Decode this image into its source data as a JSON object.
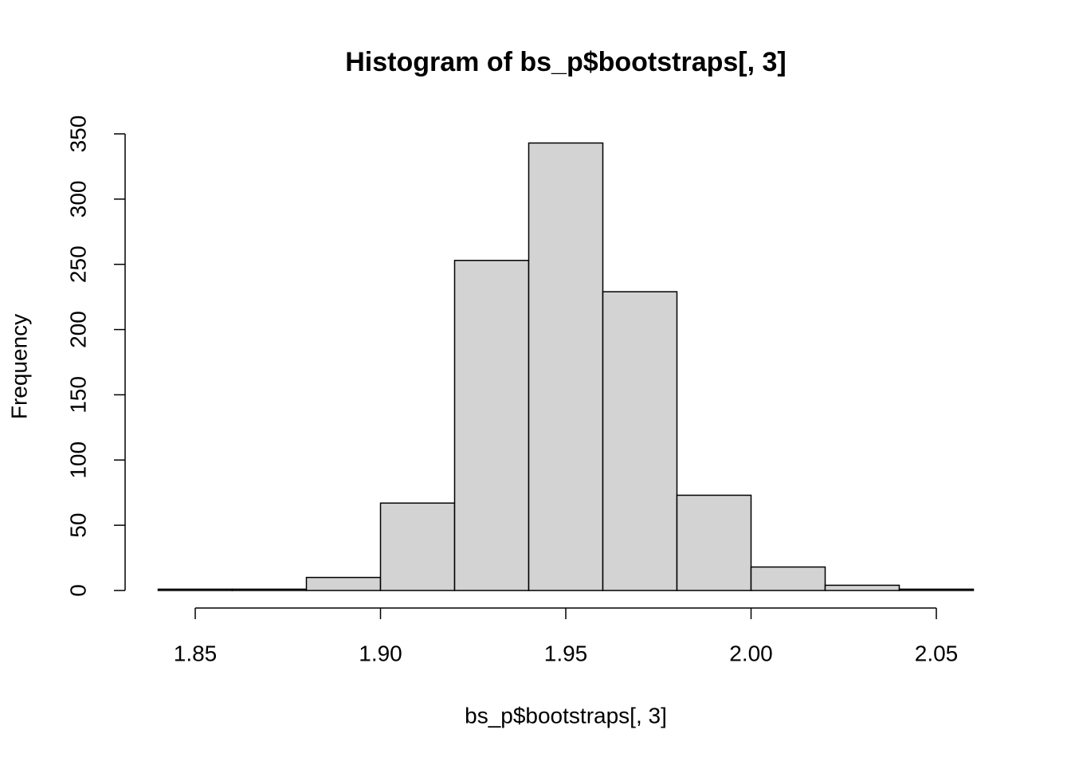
{
  "chart_data": {
    "type": "histogram",
    "title": "Histogram of bs_p$bootstraps[, 3]",
    "x_label": "bs_p$bootstraps[, 3]",
    "y_label": "Frequency",
    "bins": [
      1.84,
      1.86,
      1.88,
      1.9,
      1.92,
      1.94,
      1.96,
      1.98,
      2.0,
      2.02,
      2.04,
      2.06
    ],
    "values": [
      1,
      1,
      10,
      67,
      253,
      343,
      229,
      73,
      18,
      4,
      1
    ],
    "color": "#d3d3d3",
    "xlim": [
      1.84,
      2.06
    ],
    "xticks": [
      1.85,
      {
        "value": 1.9,
        "label": "1.90"
      },
      1.95,
      {
        "value": 2.0,
        "label": "2.00"
      },
      2.05
    ],
    "ylim": [
      0,
      350
    ],
    "yticks": [
      0,
      50,
      100,
      150,
      200,
      250,
      300,
      350
    ]
  }
}
